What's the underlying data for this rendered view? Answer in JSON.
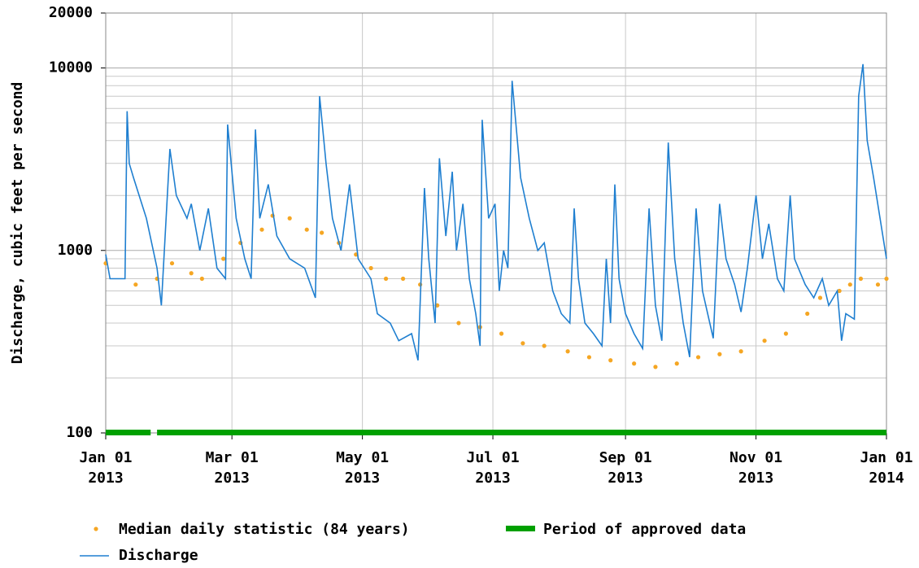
{
  "chart_data": {
    "type": "line",
    "ylabel": "Discharge, cubic feet per second",
    "ylog": true,
    "grid": true,
    "ylim": [
      100,
      20000
    ],
    "yticks": [
      100,
      1000,
      10000,
      20000
    ],
    "yminor": [
      200,
      300,
      400,
      500,
      600,
      700,
      800,
      900,
      2000,
      3000,
      4000,
      5000,
      6000,
      7000,
      8000,
      9000
    ],
    "xlim": [
      "2013-01-01",
      "2014-01-01"
    ],
    "xticks": [
      {
        "value": "2013-01-01",
        "label": "Jan 01\n2013"
      },
      {
        "value": "2013-03-01",
        "label": "Mar 01\n2013"
      },
      {
        "value": "2013-05-01",
        "label": "May 01\n2013"
      },
      {
        "value": "2013-07-01",
        "label": "Jul 01\n2013"
      },
      {
        "value": "2013-09-01",
        "label": "Sep 01\n2013"
      },
      {
        "value": "2013-11-01",
        "label": "Nov 01\n2013"
      },
      {
        "value": "2014-01-01",
        "label": "Jan 01\n2014"
      }
    ],
    "approved": {
      "name": "Period of approved data",
      "color": "#00a000",
      "periods": [
        [
          "2013-01-01",
          "2013-01-22"
        ],
        [
          "2013-01-25",
          "2014-01-01"
        ]
      ]
    },
    "series": [
      {
        "name": "Median daily statistic (84 years)",
        "color": "#f5a623",
        "style": "points",
        "x": [
          "2013-01-01",
          "2013-01-15",
          "2013-01-25",
          "2013-02-01",
          "2013-02-10",
          "2013-02-15",
          "2013-02-25",
          "2013-03-05",
          "2013-03-15",
          "2013-03-20",
          "2013-03-28",
          "2013-04-05",
          "2013-04-12",
          "2013-04-20",
          "2013-04-28",
          "2013-05-05",
          "2013-05-12",
          "2013-05-20",
          "2013-05-28",
          "2013-06-05",
          "2013-06-15",
          "2013-06-25",
          "2013-07-05",
          "2013-07-15",
          "2013-07-25",
          "2013-08-05",
          "2013-08-15",
          "2013-08-25",
          "2013-09-05",
          "2013-09-15",
          "2013-09-25",
          "2013-10-05",
          "2013-10-15",
          "2013-10-25",
          "2013-11-05",
          "2013-11-15",
          "2013-11-25",
          "2013-12-01",
          "2013-12-10",
          "2013-12-15",
          "2013-12-20",
          "2013-12-28",
          "2014-01-01"
        ],
        "values": [
          850,
          650,
          700,
          850,
          750,
          700,
          900,
          1100,
          1300,
          1550,
          1500,
          1300,
          1250,
          1100,
          950,
          800,
          700,
          700,
          650,
          500,
          400,
          380,
          350,
          310,
          300,
          280,
          260,
          250,
          240,
          230,
          240,
          260,
          270,
          280,
          320,
          350,
          450,
          550,
          600,
          650,
          700,
          650,
          700
        ]
      },
      {
        "name": "Discharge",
        "color": "#1f7fd0",
        "style": "line",
        "x": [
          "2013-01-01",
          "2013-01-03",
          "2013-01-10",
          "2013-01-11",
          "2013-01-12",
          "2013-01-14",
          "2013-01-20",
          "2013-01-25",
          "2013-01-27",
          "2013-01-31",
          "2013-02-03",
          "2013-02-08",
          "2013-02-10",
          "2013-02-14",
          "2013-02-18",
          "2013-02-22",
          "2013-02-26",
          "2013-02-27",
          "2013-03-03",
          "2013-03-07",
          "2013-03-10",
          "2013-03-12",
          "2013-03-14",
          "2013-03-18",
          "2013-03-22",
          "2013-03-28",
          "2013-04-04",
          "2013-04-09",
          "2013-04-11",
          "2013-04-14",
          "2013-04-17",
          "2013-04-21",
          "2013-04-25",
          "2013-04-29",
          "2013-05-05",
          "2013-05-08",
          "2013-05-14",
          "2013-05-18",
          "2013-05-24",
          "2013-05-27",
          "2013-05-30",
          "2013-06-01",
          "2013-06-04",
          "2013-06-06",
          "2013-06-09",
          "2013-06-12",
          "2013-06-14",
          "2013-06-17",
          "2013-06-20",
          "2013-06-23",
          "2013-06-25",
          "2013-06-26",
          "2013-06-29",
          "2013-07-02",
          "2013-07-04",
          "2013-07-06",
          "2013-07-08",
          "2013-07-10",
          "2013-07-14",
          "2013-07-18",
          "2013-07-22",
          "2013-07-25",
          "2013-07-29",
          "2013-08-02",
          "2013-08-06",
          "2013-08-08",
          "2013-08-10",
          "2013-08-13",
          "2013-08-17",
          "2013-08-21",
          "2013-08-23",
          "2013-08-25",
          "2013-08-27",
          "2013-08-29",
          "2013-09-01",
          "2013-09-05",
          "2013-09-09",
          "2013-09-12",
          "2013-09-15",
          "2013-09-18",
          "2013-09-21",
          "2013-09-24",
          "2013-09-28",
          "2013-10-01",
          "2013-10-04",
          "2013-10-07",
          "2013-10-12",
          "2013-10-15",
          "2013-10-18",
          "2013-10-22",
          "2013-10-25",
          "2013-10-28",
          "2013-11-01",
          "2013-11-04",
          "2013-11-07",
          "2013-11-11",
          "2013-11-14",
          "2013-11-17",
          "2013-11-19",
          "2013-11-24",
          "2013-11-28",
          "2013-12-02",
          "2013-12-05",
          "2013-12-09",
          "2013-12-11",
          "2013-12-13",
          "2013-12-17",
          "2013-12-19",
          "2013-12-21",
          "2013-12-23",
          "2013-12-26",
          "2013-12-29",
          "2014-01-01"
        ],
        "values": [
          950,
          700,
          700,
          5800,
          3000,
          2500,
          1500,
          800,
          500,
          3600,
          2000,
          1500,
          1800,
          1000,
          1700,
          800,
          700,
          4900,
          1500,
          900,
          700,
          4600,
          1500,
          2300,
          1200,
          900,
          800,
          550,
          7000,
          3000,
          1500,
          1000,
          2300,
          900,
          700,
          450,
          400,
          320,
          350,
          250,
          2200,
          900,
          400,
          3200,
          1200,
          2700,
          1000,
          1800,
          700,
          450,
          300,
          5200,
          1500,
          1800,
          600,
          1000,
          800,
          8500,
          2500,
          1500,
          1000,
          1100,
          600,
          450,
          400,
          1700,
          700,
          400,
          350,
          300,
          900,
          400,
          2300,
          700,
          450,
          350,
          290,
          1700,
          500,
          320,
          3900,
          900,
          400,
          260,
          1700,
          600,
          330,
          1800,
          900,
          650,
          460,
          800,
          2000,
          900,
          1400,
          700,
          600,
          2000,
          900,
          650,
          550,
          700,
          500,
          600,
          320,
          450,
          420,
          7000,
          10500,
          4000,
          2500,
          1500,
          900
        ]
      }
    ]
  }
}
